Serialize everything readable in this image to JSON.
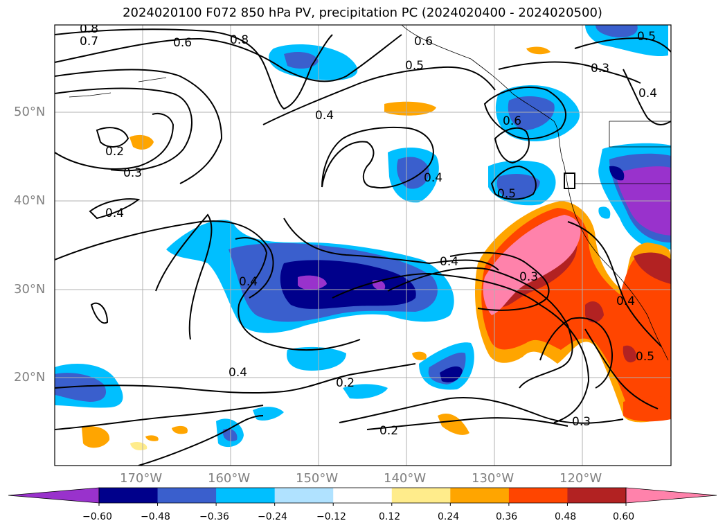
{
  "title": "2024020100 F072 850 hPa PV, precipitation PC (2024020400 - 2024020500)",
  "lat_labels": [
    "50°N",
    "40°N",
    "30°N",
    "20°N"
  ],
  "lon_labels": [
    "170°W",
    "160°W",
    "150°W",
    "140°W",
    "130°W",
    "120°W"
  ],
  "contour_labels": [
    "0.8",
    "0.7",
    "0.6",
    "0.8",
    "0.6",
    "0.5",
    "0.3",
    "0.5",
    "0.4",
    "0.6",
    "0.4",
    "0.2",
    "0.3",
    "0.4",
    "0.5",
    "0.4",
    "0.4",
    "0.3",
    "0.4",
    "0.4",
    "0.5",
    "0.2",
    "0.4",
    "0.2",
    "0.3"
  ],
  "colorbar": {
    "colors": [
      "#9932cc",
      "#00008b",
      "#3a5fcd",
      "#00bfff",
      "#b0e2ff",
      "#ffffff",
      "#ffec8b",
      "#ffa500",
      "#ff4500",
      "#b22222",
      "#ff82ab"
    ],
    "ticks": [
      "−0.60",
      "−0.48",
      "−0.36",
      "−0.24",
      "−0.12",
      "0.12",
      "0.24",
      "0.36",
      "0.48",
      "0.60"
    ]
  }
}
